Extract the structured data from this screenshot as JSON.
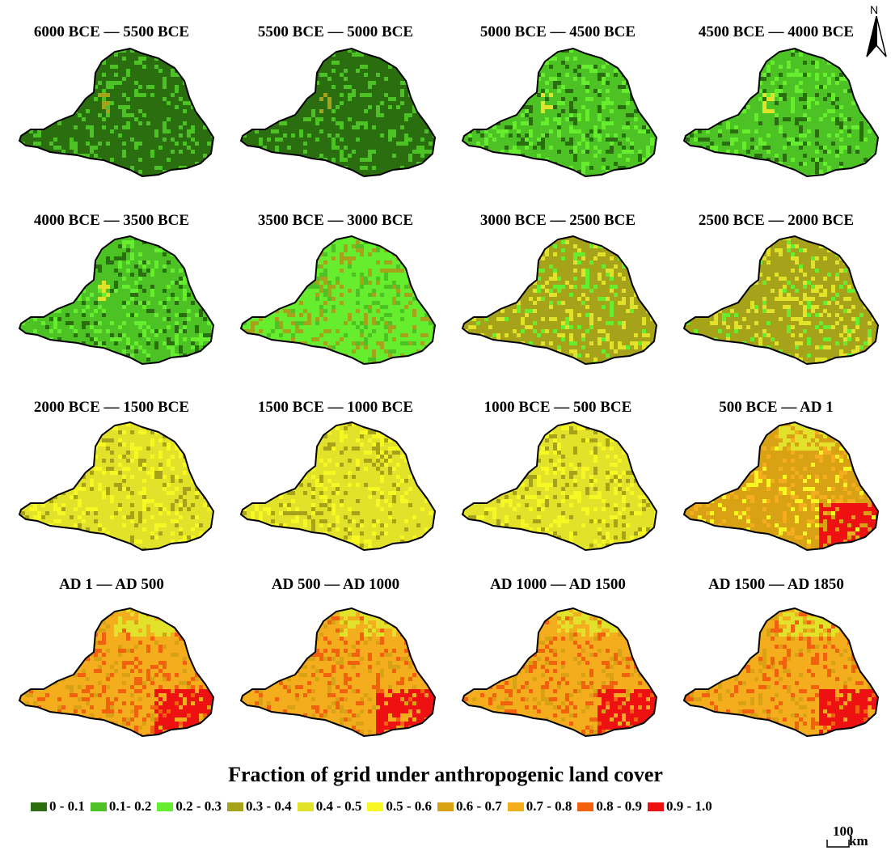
{
  "panels": [
    {
      "title": "6000 BCE — 5500 BCE",
      "dominant_class": 0
    },
    {
      "title": "5500 BCE — 5000 BCE",
      "dominant_class": 0
    },
    {
      "title": "5000 BCE — 4500 BCE",
      "dominant_class": 1
    },
    {
      "title": "4500 BCE — 4000 BCE",
      "dominant_class": 1
    },
    {
      "title": "4000 BCE — 3500 BCE",
      "dominant_class": 1
    },
    {
      "title": "3500 BCE — 3000 BCE",
      "dominant_class": 2
    },
    {
      "title": "3000 BCE — 2500 BCE",
      "dominant_class": 3
    },
    {
      "title": "2500 BCE — 2000 BCE",
      "dominant_class": 3
    },
    {
      "title": "2000 BCE — 1500 BCE",
      "dominant_class": 4
    },
    {
      "title": "1500 BCE — 1000 BCE",
      "dominant_class": 4
    },
    {
      "title": "1000 BCE — 500 BCE",
      "dominant_class": 4
    },
    {
      "title": "500 BCE — AD 1",
      "dominant_class": 6
    },
    {
      "title": "AD 1 — AD 500",
      "dominant_class": 7
    },
    {
      "title": "AD 500 — AD 1000",
      "dominant_class": 7
    },
    {
      "title": "AD 1000 — AD 1500",
      "dominant_class": 7
    },
    {
      "title": "AD 1500 — AD 1850",
      "dominant_class": 7
    }
  ],
  "legend": {
    "title": "Fraction of grid under anthropogenic land cover",
    "items": [
      {
        "label": "0 - 0.1",
        "color": "#2a6e10"
      },
      {
        "label": "0.1- 0.2",
        "color": "#4cc225"
      },
      {
        "label": "0.2 - 0.3",
        "color": "#66ee2e"
      },
      {
        "label": "0.3 - 0.4",
        "color": "#a6a21a"
      },
      {
        "label": "0.4 - 0.5",
        "color": "#e2e22a"
      },
      {
        "label": "0.5 - 0.6",
        "color": "#f7f724"
      },
      {
        "label": "0.6 - 0.7",
        "color": "#d9a114"
      },
      {
        "label": "0.7 - 0.8",
        "color": "#f4ad1d"
      },
      {
        "label": "0.8 - 0.9",
        "color": "#f2620e"
      },
      {
        "label": "0.9 - 1.0",
        "color": "#ee1111"
      }
    ]
  },
  "north_label": "N",
  "scale": {
    "value": "100",
    "unit": "km"
  }
}
